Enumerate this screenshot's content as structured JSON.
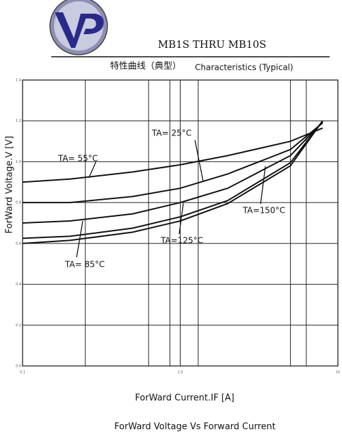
{
  "header": {
    "part": "MB1S THRU MB10S",
    "subtitle_cn": "特性曲线（典型）",
    "subtitle_en": "Characteristics (Typical)"
  },
  "chart_data": {
    "type": "line",
    "title": "ForWard Voltage Vs Forward Current",
    "x_label": "ForWard Current.IF [A]",
    "y_label": "ForWard Voltage.V  [V]",
    "x": [
      0.1,
      0.2,
      0.5,
      1,
      2,
      5,
      8
    ],
    "x_scale": "log",
    "xlim": [
      0.1,
      10
    ],
    "xticks": [
      0.1,
      {
        "value": 1,
        "label": "1.0"
      },
      10
    ],
    "xminor": [
      0.25,
      0.63,
      0.86,
      1.3,
      5,
      6.3
    ],
    "ylim": [
      0,
      1.4
    ],
    "yticks": [
      {
        "value": 0,
        "label": "0.0"
      },
      0.2,
      0.4,
      0.6,
      0.8,
      {
        "value": 1,
        "label": "1.0"
      },
      1.2,
      1.4
    ],
    "grid": true,
    "series": [
      {
        "name": "TA= 55°C",
        "color": "#111111",
        "values": [
          0.9,
          0.915,
          0.95,
          0.985,
          1.03,
          1.1,
          1.165
        ]
      },
      {
        "name": "TA= 25°C",
        "color": "#111111",
        "values": [
          0.8,
          0.8,
          0.83,
          0.87,
          0.94,
          1.06,
          1.19
        ]
      },
      {
        "name": "TA= 85°C",
        "color": "#111111",
        "values": [
          0.7,
          0.71,
          0.745,
          0.8,
          0.87,
          1.03,
          1.195
        ]
      },
      {
        "name": "TA=125°C",
        "color": "#111111",
        "values": [
          0.625,
          0.635,
          0.675,
          0.73,
          0.81,
          0.995,
          1.2
        ]
      },
      {
        "name": "TA=150°C",
        "color": "#111111",
        "values": [
          0.6,
          0.615,
          0.655,
          0.71,
          0.795,
          0.98,
          1.2
        ]
      }
    ]
  }
}
